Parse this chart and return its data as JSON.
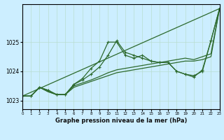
{
  "background_color": "#cceeff",
  "grid_color": "#b8ddd0",
  "line_color": "#2d6a2d",
  "title": "Graphe pression niveau de la mer (hPa)",
  "xlabel_range": [
    0,
    23
  ],
  "ylabel_range": [
    1022.7,
    1026.3
  ],
  "yticks": [
    1023,
    1024,
    1025
  ],
  "xticks": [
    0,
    1,
    2,
    3,
    4,
    5,
    6,
    7,
    8,
    9,
    10,
    11,
    12,
    13,
    14,
    15,
    16,
    17,
    18,
    19,
    20,
    21,
    22,
    23
  ],
  "series": [
    {
      "x": [
        0,
        23
      ],
      "y": [
        1023.15,
        1026.15
      ],
      "marker": null,
      "lw": 0.9
    },
    {
      "x": [
        0,
        1,
        2,
        3,
        4,
        5,
        6,
        7,
        8,
        9,
        10,
        11,
        12,
        13,
        14,
        15,
        16,
        17,
        18,
        19,
        20,
        21,
        22,
        23
      ],
      "y": [
        1023.15,
        1023.15,
        1023.45,
        1023.35,
        1023.2,
        1023.2,
        1023.55,
        1023.7,
        1023.9,
        1024.15,
        1024.55,
        1025.05,
        1024.65,
        1024.55,
        1024.45,
        1024.35,
        1024.3,
        1024.3,
        1024.0,
        1023.9,
        1023.85,
        1024.0,
        1025.05,
        1026.15
      ],
      "marker": "+",
      "lw": 0.9
    },
    {
      "x": [
        0,
        1,
        2,
        3,
        4,
        5,
        6,
        7,
        8,
        9,
        10,
        11,
        12,
        13,
        14,
        15,
        16,
        17,
        18,
        19,
        20,
        21,
        22,
        23
      ],
      "y": [
        1023.15,
        1023.15,
        1023.45,
        1023.35,
        1023.2,
        1023.2,
        1023.55,
        1023.75,
        1024.1,
        1024.35,
        1025.0,
        1025.0,
        1024.55,
        1024.45,
        1024.55,
        1024.35,
        1024.3,
        1024.3,
        1024.0,
        1023.9,
        1023.8,
        1024.05,
        1025.05,
        1026.15
      ],
      "marker": "+",
      "lw": 0.9
    },
    {
      "x": [
        0,
        1,
        2,
        3,
        4,
        5,
        6,
        7,
        8,
        9,
        10,
        11,
        12,
        13,
        14,
        15,
        16,
        17,
        18,
        19,
        20,
        21,
        22,
        23
      ],
      "y": [
        1023.15,
        1023.15,
        1023.45,
        1023.3,
        1023.2,
        1023.2,
        1023.45,
        1023.55,
        1023.65,
        1023.75,
        1023.85,
        1023.95,
        1024.0,
        1024.05,
        1024.1,
        1024.15,
        1024.2,
        1024.25,
        1024.3,
        1024.35,
        1024.35,
        1024.4,
        1024.5,
        1026.15
      ],
      "marker": null,
      "lw": 0.9
    },
    {
      "x": [
        0,
        1,
        2,
        3,
        4,
        5,
        6,
        7,
        8,
        9,
        10,
        11,
        12,
        13,
        14,
        15,
        16,
        17,
        18,
        19,
        20,
        21,
        22,
        23
      ],
      "y": [
        1023.15,
        1023.15,
        1023.45,
        1023.3,
        1023.2,
        1023.2,
        1023.5,
        1023.6,
        1023.7,
        1023.82,
        1023.95,
        1024.05,
        1024.1,
        1024.15,
        1024.2,
        1024.25,
        1024.3,
        1024.35,
        1024.4,
        1024.45,
        1024.4,
        1024.5,
        1024.6,
        1026.15
      ],
      "marker": null,
      "lw": 0.9
    }
  ]
}
